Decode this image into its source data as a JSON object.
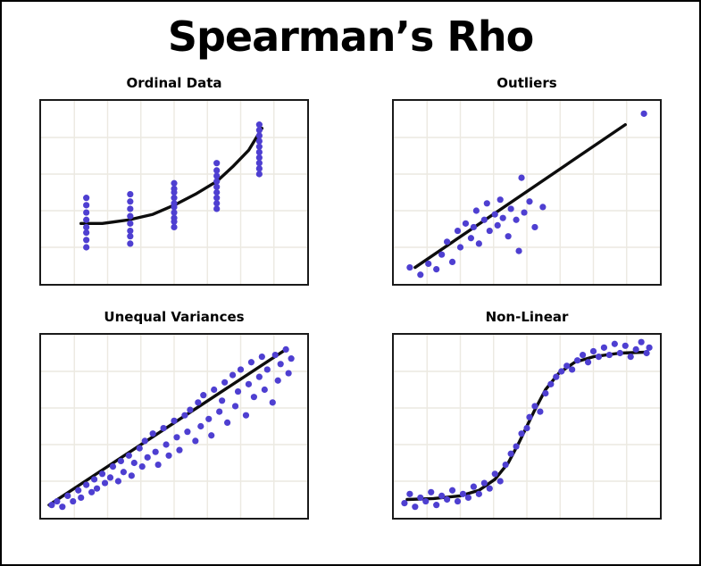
{
  "title": "Spearman’s Rho",
  "colors": {
    "dot": "#4e3fd1",
    "fit_line": "#0d0d0d",
    "grid": "#ece9e1",
    "plot_border": "#1a1a1a",
    "background": "#ffffff"
  },
  "chart_data": [
    {
      "type": "scatter",
      "title": "Ordinal Data",
      "x_range": [
        0,
        10
      ],
      "y_range": [
        0,
        10
      ],
      "grid": true,
      "legend": "none",
      "points": [
        [
          1.7,
          2.0
        ],
        [
          1.7,
          2.4
        ],
        [
          1.7,
          2.8
        ],
        [
          1.7,
          3.1
        ],
        [
          1.7,
          3.5
        ],
        [
          1.7,
          3.9
        ],
        [
          1.7,
          4.3
        ],
        [
          1.7,
          4.7
        ],
        [
          3.35,
          2.2
        ],
        [
          3.35,
          2.6
        ],
        [
          3.35,
          2.9
        ],
        [
          3.35,
          3.3
        ],
        [
          3.35,
          3.7
        ],
        [
          3.35,
          4.1
        ],
        [
          3.35,
          4.5
        ],
        [
          3.35,
          4.9
        ],
        [
          5.0,
          3.1
        ],
        [
          5.0,
          3.4
        ],
        [
          5.0,
          3.6
        ],
        [
          5.0,
          3.9
        ],
        [
          5.0,
          4.2
        ],
        [
          5.0,
          4.4
        ],
        [
          5.0,
          4.7
        ],
        [
          5.0,
          5.0
        ],
        [
          5.0,
          5.2
        ],
        [
          5.0,
          5.5
        ],
        [
          6.6,
          4.1
        ],
        [
          6.6,
          4.4
        ],
        [
          6.6,
          4.7
        ],
        [
          6.6,
          5.0
        ],
        [
          6.6,
          5.3
        ],
        [
          6.6,
          5.6
        ],
        [
          6.6,
          5.9
        ],
        [
          6.6,
          6.2
        ],
        [
          6.6,
          6.6
        ],
        [
          8.2,
          6.0
        ],
        [
          8.2,
          6.3
        ],
        [
          8.2,
          6.6
        ],
        [
          8.2,
          6.9
        ],
        [
          8.2,
          7.2
        ],
        [
          8.2,
          7.5
        ],
        [
          8.2,
          7.8
        ],
        [
          8.2,
          8.1
        ],
        [
          8.2,
          8.4
        ],
        [
          8.2,
          8.7
        ]
      ],
      "fit": [
        [
          1.5,
          3.3
        ],
        [
          2.3,
          3.3
        ],
        [
          3.3,
          3.5
        ],
        [
          4.2,
          3.8
        ],
        [
          5.0,
          4.3
        ],
        [
          5.8,
          4.9
        ],
        [
          6.6,
          5.6
        ],
        [
          7.2,
          6.4
        ],
        [
          7.8,
          7.3
        ],
        [
          8.3,
          8.5
        ]
      ]
    },
    {
      "type": "scatter",
      "title": "Outliers",
      "x_range": [
        0,
        10
      ],
      "y_range": [
        0,
        10
      ],
      "grid": true,
      "legend": "none",
      "points": [
        [
          0.6,
          0.9
        ],
        [
          1.0,
          0.5
        ],
        [
          1.3,
          1.1
        ],
        [
          1.6,
          0.8
        ],
        [
          1.8,
          1.6
        ],
        [
          2.0,
          2.3
        ],
        [
          2.2,
          1.2
        ],
        [
          2.4,
          2.9
        ],
        [
          2.5,
          2.0
        ],
        [
          2.7,
          3.3
        ],
        [
          2.9,
          2.5
        ],
        [
          3.0,
          3.1
        ],
        [
          3.1,
          4.0
        ],
        [
          3.2,
          2.2
        ],
        [
          3.4,
          3.5
        ],
        [
          3.5,
          4.4
        ],
        [
          3.6,
          2.9
        ],
        [
          3.8,
          3.8
        ],
        [
          3.9,
          3.2
        ],
        [
          4.0,
          4.6
        ],
        [
          4.1,
          3.6
        ],
        [
          4.3,
          2.6
        ],
        [
          4.4,
          4.1
        ],
        [
          4.6,
          3.5
        ],
        [
          4.7,
          1.8
        ],
        [
          4.8,
          5.8
        ],
        [
          4.9,
          3.9
        ],
        [
          5.1,
          4.5
        ],
        [
          5.3,
          3.1
        ],
        [
          5.6,
          4.2
        ],
        [
          9.4,
          9.3
        ]
      ],
      "fit": [
        [
          0.8,
          0.9
        ],
        [
          8.7,
          8.7
        ]
      ]
    },
    {
      "type": "scatter",
      "title": "Unequal Variances",
      "x_range": [
        0,
        10
      ],
      "y_range": [
        0,
        10
      ],
      "grid": true,
      "legend": "none",
      "points": [
        [
          0.4,
          0.7
        ],
        [
          0.6,
          0.9
        ],
        [
          0.8,
          0.6
        ],
        [
          1.0,
          1.2
        ],
        [
          1.2,
          0.9
        ],
        [
          1.4,
          1.5
        ],
        [
          1.5,
          1.1
        ],
        [
          1.7,
          1.8
        ],
        [
          1.9,
          1.4
        ],
        [
          2.0,
          2.1
        ],
        [
          2.1,
          1.6
        ],
        [
          2.3,
          2.4
        ],
        [
          2.4,
          1.9
        ],
        [
          2.6,
          2.2
        ],
        [
          2.7,
          2.8
        ],
        [
          2.9,
          2.0
        ],
        [
          3.0,
          3.1
        ],
        [
          3.1,
          2.5
        ],
        [
          3.3,
          3.4
        ],
        [
          3.4,
          2.3
        ],
        [
          3.5,
          3.0
        ],
        [
          3.7,
          3.8
        ],
        [
          3.8,
          2.8
        ],
        [
          3.9,
          4.2
        ],
        [
          4.0,
          3.3
        ],
        [
          4.2,
          4.6
        ],
        [
          4.3,
          3.6
        ],
        [
          4.4,
          2.9
        ],
        [
          4.6,
          4.9
        ],
        [
          4.7,
          4.0
        ],
        [
          4.8,
          3.4
        ],
        [
          5.0,
          5.3
        ],
        [
          5.1,
          4.4
        ],
        [
          5.2,
          3.7
        ],
        [
          5.4,
          5.6
        ],
        [
          5.5,
          4.7
        ],
        [
          5.6,
          5.9
        ],
        [
          5.8,
          4.2
        ],
        [
          5.9,
          6.3
        ],
        [
          6.0,
          5.0
        ],
        [
          6.1,
          6.7
        ],
        [
          6.3,
          5.4
        ],
        [
          6.4,
          4.5
        ],
        [
          6.5,
          7.0
        ],
        [
          6.7,
          5.8
        ],
        [
          6.8,
          6.4
        ],
        [
          6.9,
          7.4
        ],
        [
          7.0,
          5.2
        ],
        [
          7.2,
          7.8
        ],
        [
          7.3,
          6.1
        ],
        [
          7.4,
          6.9
        ],
        [
          7.5,
          8.1
        ],
        [
          7.7,
          5.6
        ],
        [
          7.8,
          7.3
        ],
        [
          7.9,
          8.5
        ],
        [
          8.0,
          6.6
        ],
        [
          8.2,
          7.7
        ],
        [
          8.3,
          8.8
        ],
        [
          8.4,
          7.0
        ],
        [
          8.5,
          8.1
        ],
        [
          8.7,
          6.3
        ],
        [
          8.8,
          8.9
        ],
        [
          8.9,
          7.5
        ],
        [
          9.0,
          8.4
        ],
        [
          9.2,
          9.2
        ],
        [
          9.3,
          7.9
        ],
        [
          9.4,
          8.7
        ]
      ],
      "fit": [
        [
          0.3,
          0.7
        ],
        [
          9.2,
          9.2
        ]
      ]
    },
    {
      "type": "scatter",
      "title": "Non-Linear",
      "x_range": [
        0,
        10
      ],
      "y_range": [
        0,
        10
      ],
      "grid": true,
      "legend": "none",
      "points": [
        [
          0.4,
          0.8
        ],
        [
          0.6,
          1.3
        ],
        [
          0.8,
          0.6
        ],
        [
          1.0,
          1.1
        ],
        [
          1.2,
          0.9
        ],
        [
          1.4,
          1.4
        ],
        [
          1.6,
          0.7
        ],
        [
          1.8,
          1.2
        ],
        [
          2.0,
          1.0
        ],
        [
          2.2,
          1.5
        ],
        [
          2.4,
          0.9
        ],
        [
          2.6,
          1.3
        ],
        [
          2.8,
          1.1
        ],
        [
          3.0,
          1.7
        ],
        [
          3.2,
          1.3
        ],
        [
          3.4,
          1.9
        ],
        [
          3.6,
          1.6
        ],
        [
          3.8,
          2.4
        ],
        [
          4.0,
          2.0
        ],
        [
          4.2,
          2.9
        ],
        [
          4.4,
          3.5
        ],
        [
          4.6,
          3.9
        ],
        [
          4.8,
          4.6
        ],
        [
          5.0,
          4.9
        ],
        [
          5.1,
          5.5
        ],
        [
          5.3,
          6.1
        ],
        [
          5.5,
          5.8
        ],
        [
          5.7,
          6.8
        ],
        [
          5.9,
          7.3
        ],
        [
          6.1,
          7.7
        ],
        [
          6.3,
          8.0
        ],
        [
          6.5,
          8.3
        ],
        [
          6.7,
          8.1
        ],
        [
          6.9,
          8.6
        ],
        [
          7.1,
          8.9
        ],
        [
          7.3,
          8.5
        ],
        [
          7.5,
          9.1
        ],
        [
          7.7,
          8.8
        ],
        [
          7.9,
          9.3
        ],
        [
          8.1,
          8.9
        ],
        [
          8.3,
          9.5
        ],
        [
          8.5,
          9.0
        ],
        [
          8.7,
          9.4
        ],
        [
          8.9,
          8.8
        ],
        [
          9.1,
          9.2
        ],
        [
          9.3,
          9.6
        ],
        [
          9.5,
          9.0
        ],
        [
          9.6,
          9.3
        ]
      ],
      "fit": [
        [
          0.5,
          1.0
        ],
        [
          1.5,
          1.05
        ],
        [
          2.5,
          1.2
        ],
        [
          3.2,
          1.5
        ],
        [
          3.8,
          2.1
        ],
        [
          4.3,
          3.0
        ],
        [
          4.7,
          4.1
        ],
        [
          5.0,
          5.0
        ],
        [
          5.3,
          5.9
        ],
        [
          5.7,
          7.0
        ],
        [
          6.2,
          7.9
        ],
        [
          6.8,
          8.5
        ],
        [
          7.5,
          8.8
        ],
        [
          8.5,
          9.0
        ],
        [
          9.5,
          9.05
        ]
      ]
    }
  ]
}
